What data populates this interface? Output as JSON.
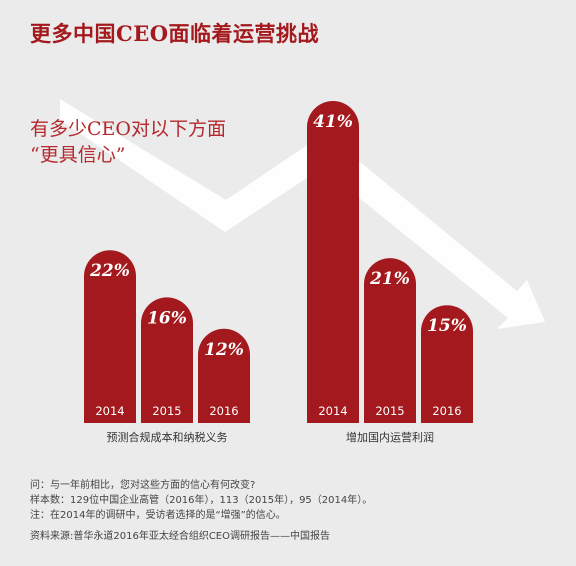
{
  "title": "更多中国CEO面临着运营挑战",
  "subtitle_line1": "有多少CEO对以下方面",
  "subtitle_line2": "“更具信心”",
  "chart_data": {
    "type": "bar",
    "title": "更多中国CEO面临着运营挑战",
    "groups": [
      {
        "label": "预测合规成本和纳税义务",
        "categories": [
          "2014",
          "2015",
          "2016"
        ],
        "values": [
          22,
          16,
          12
        ],
        "labels": [
          "22%",
          "16%",
          "12%"
        ]
      },
      {
        "label": "增加国内运营利润",
        "categories": [
          "2014",
          "2015",
          "2016"
        ],
        "values": [
          41,
          21,
          15
        ],
        "labels": [
          "41%",
          "21%",
          "15%"
        ]
      }
    ],
    "unit": "%",
    "ylim": [
      0,
      41
    ],
    "grid": false,
    "legend": "none"
  },
  "notes": {
    "q": "问：与一年前相比，您对这些方面的信心有何改变?",
    "sample": "样本数：129位中国企业高管（2016年），113（2015年），95（2014年）。",
    "note": "注：在2014年的调研中，受访者选择的是“增强”的信心。",
    "source": "资料来源:普华永道2016年亚太经合组织CEO调研报告——中国报告"
  },
  "colors": {
    "bar": "#a3191d",
    "title": "#a3191d",
    "background": "#ebebeb"
  }
}
